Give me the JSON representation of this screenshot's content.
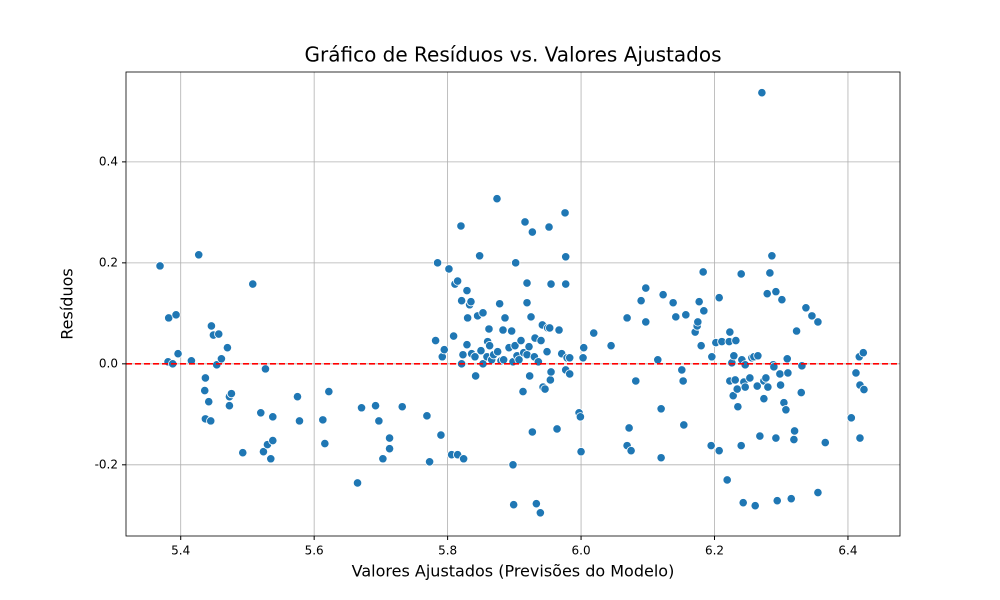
{
  "chart_data": {
    "type": "scatter",
    "title": "Gráfico de Resíduos vs. Valores Ajustados",
    "xlabel": "Valores Ajustados (Previsões do Modelo)",
    "ylabel": "Resíduos",
    "xlim": [
      5.318,
      6.478
    ],
    "ylim": [
      -0.341,
      0.578
    ],
    "xticks": [
      5.4,
      5.6,
      5.8,
      {
        "value": 6,
        "label": "6.0"
      },
      6.2,
      6.4
    ],
    "yticks": [
      -0.2,
      {
        "value": 0,
        "label": "0.0"
      },
      0.2,
      0.4
    ],
    "grid": true,
    "color": "#1f77b4",
    "hline": {
      "value": 0,
      "color": "#ff0000",
      "style": "dashed"
    },
    "x": [
      5.369,
      5.382,
      5.393,
      5.381,
      5.388,
      5.396,
      5.427,
      5.416,
      5.437,
      5.436,
      5.442,
      5.437,
      5.445,
      5.446,
      5.449,
      5.457,
      5.454,
      5.461,
      5.47,
      5.473,
      5.476,
      5.473,
      5.508,
      5.493,
      5.52,
      5.527,
      5.524,
      5.53,
      5.535,
      5.538,
      5.538,
      5.575,
      5.578,
      5.622,
      5.613,
      5.616,
      5.665,
      5.671,
      5.692,
      5.697,
      5.703,
      5.713,
      5.713,
      5.732,
      5.769,
      5.773,
      5.79,
      5.785,
      5.782,
      5.792,
      5.795,
      5.802,
      5.806,
      5.815,
      5.809,
      5.811,
      5.815,
      5.82,
      5.821,
      5.821,
      5.823,
      5.824,
      5.829,
      5.829,
      5.83,
      5.833,
      5.835,
      5.836,
      5.841,
      5.842,
      5.845,
      5.848,
      5.85,
      5.853,
      5.853,
      5.859,
      5.86,
      5.862,
      5.863,
      5.866,
      5.869,
      5.874,
      5.875,
      5.878,
      5.88,
      5.883,
      5.884,
      5.886,
      5.892,
      5.896,
      5.898,
      5.898,
      5.899,
      5.901,
      5.902,
      5.904,
      5.907,
      5.91,
      5.913,
      5.914,
      5.916,
      5.919,
      5.919,
      5.919,
      5.922,
      5.923,
      5.925,
      5.927,
      5.927,
      5.93,
      5.931,
      5.933,
      5.936,
      5.939,
      5.94,
      5.942,
      5.943,
      5.946,
      5.949,
      5.95,
      5.952,
      5.953,
      5.954,
      5.955,
      5.955,
      5.964,
      5.967,
      5.971,
      5.976,
      5.977,
      5.977,
      5.977,
      5.979,
      5.983,
      5.983,
      5.997,
      5.999,
      6.0,
      6.004,
      6.003,
      6.019,
      6.045,
      6.069,
      6.069,
      6.072,
      6.075,
      6.082,
      6.09,
      6.097,
      6.097,
      6.115,
      6.12,
      6.12,
      6.123,
      6.138,
      6.142,
      6.151,
      6.153,
      6.154,
      6.157,
      6.171,
      6.174,
      6.175,
      6.177,
      6.18,
      6.183,
      6.184,
      6.195,
      6.196,
      6.202,
      6.207,
      6.207,
      6.211,
      6.219,
      6.222,
      6.223,
      6.223,
      6.226,
      6.228,
      6.229,
      6.231,
      6.232,
      6.234,
      6.235,
      6.24,
      6.24,
      6.241,
      6.243,
      6.244,
      6.246,
      6.246,
      6.253,
      6.256,
      6.259,
      6.261,
      6.264,
      6.265,
      6.268,
      6.271,
      6.274,
      6.274,
      6.277,
      6.279,
      6.28,
      6.283,
      6.286,
      6.288,
      6.289,
      6.292,
      6.292,
      6.294,
      6.298,
      6.299,
      6.301,
      6.304,
      6.307,
      6.309,
      6.31,
      6.315,
      6.319,
      6.32,
      6.323,
      6.33,
      6.331,
      6.337,
      6.346,
      6.355,
      6.355,
      6.366,
      6.405,
      6.412,
      6.417,
      6.418,
      6.418,
      6.423,
      6.424
    ],
    "values": [
      0.194,
      0.091,
      0.097,
      0.004,
      0.0,
      0.02,
      0.216,
      0.006,
      -0.028,
      -0.053,
      -0.075,
      -0.109,
      -0.113,
      0.075,
      0.057,
      0.059,
      -0.002,
      0.01,
      0.032,
      -0.065,
      -0.059,
      -0.083,
      0.158,
      -0.176,
      -0.097,
      -0.01,
      -0.174,
      -0.16,
      -0.188,
      -0.105,
      -0.152,
      -0.065,
      -0.113,
      -0.055,
      -0.111,
      -0.158,
      -0.236,
      -0.087,
      -0.083,
      -0.113,
      -0.188,
      -0.147,
      -0.168,
      -0.085,
      -0.103,
      -0.194,
      -0.141,
      0.2,
      0.046,
      0.014,
      0.028,
      0.188,
      -0.18,
      -0.18,
      0.055,
      0.158,
      0.164,
      0.273,
      0.125,
      0.0,
      0.018,
      -0.188,
      0.145,
      0.038,
      0.091,
      0.117,
      0.123,
      0.02,
      0.014,
      -0.024,
      0.095,
      0.214,
      0.026,
      0.101,
      0.0,
      0.014,
      0.044,
      0.069,
      0.036,
      0.008,
      0.018,
      0.327,
      0.024,
      0.119,
      0.006,
      0.067,
      0.008,
      0.091,
      0.032,
      0.065,
      0.004,
      -0.2,
      -0.279,
      0.036,
      0.2,
      0.016,
      0.008,
      0.046,
      -0.055,
      0.022,
      0.281,
      0.16,
      0.121,
      0.018,
      0.034,
      -0.024,
      0.093,
      0.261,
      -0.135,
      0.014,
      0.051,
      -0.277,
      0.004,
      -0.295,
      0.046,
      0.077,
      -0.046,
      -0.05,
      0.024,
      0.071,
      0.271,
      0.071,
      -0.032,
      0.158,
      -0.016,
      -0.129,
      0.067,
      0.02,
      0.299,
      0.212,
      0.158,
      -0.012,
      0.012,
      -0.02,
      0.012,
      -0.097,
      -0.105,
      -0.174,
      0.032,
      0.012,
      0.061,
      0.036,
      0.091,
      -0.162,
      -0.127,
      -0.172,
      -0.034,
      0.125,
      0.15,
      0.083,
      0.008,
      -0.089,
      -0.186,
      0.137,
      0.121,
      0.093,
      -0.012,
      -0.034,
      -0.121,
      0.097,
      0.063,
      0.075,
      0.083,
      0.123,
      0.036,
      0.182,
      0.105,
      -0.162,
      0.014,
      0.042,
      0.131,
      -0.172,
      0.044,
      -0.23,
      0.044,
      0.063,
      -0.034,
      0.002,
      -0.063,
      0.016,
      -0.032,
      0.046,
      -0.05,
      -0.085,
      0.178,
      -0.162,
      0.008,
      -0.275,
      -0.036,
      -0.046,
      -0.002,
      -0.028,
      0.012,
      0.014,
      -0.281,
      -0.044,
      0.016,
      -0.143,
      0.537,
      -0.069,
      -0.034,
      -0.028,
      0.139,
      -0.046,
      0.18,
      0.214,
      -0.002,
      -0.006,
      0.143,
      -0.147,
      -0.271,
      -0.02,
      -0.042,
      0.127,
      -0.077,
      -0.091,
      0.01,
      -0.018,
      -0.267,
      -0.15,
      -0.133,
      0.065,
      -0.057,
      -0.004,
      0.111,
      0.095,
      0.083,
      -0.255,
      -0.156,
      -0.107,
      -0.018,
      0.014,
      -0.147,
      -0.042,
      0.022,
      -0.051
    ]
  }
}
